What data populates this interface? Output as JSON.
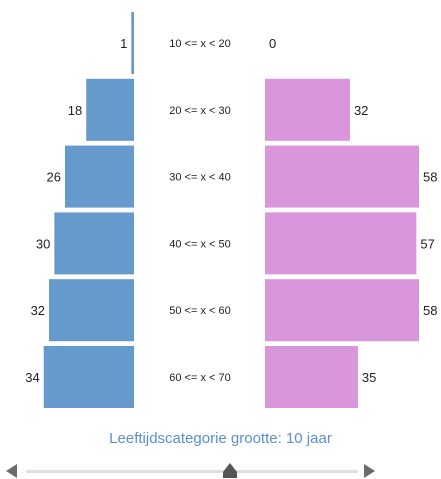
{
  "chart_data": {
    "type": "bar",
    "orientation": "horizontal-pyramid",
    "categories": [
      "10 <= x < 20",
      "20 <= x < 30",
      "30 <= x < 40",
      "40 <= x < 50",
      "50 <= x < 60",
      "60 <= x < 70"
    ],
    "series": [
      {
        "values": [
          1,
          18,
          26,
          30,
          32,
          34
        ],
        "color": "#6699cc"
      },
      {
        "values": [
          0,
          32,
          58,
          57,
          58,
          35
        ],
        "color": "#d996dd"
      }
    ],
    "xlim": [
      0,
      58
    ]
  },
  "caption": "Leeftijdscategorie grootte: 10 jaar",
  "slider": {
    "level": 0.615,
    "left_icon": "triangle-left-icon",
    "right_icon": "triangle-right-icon"
  },
  "colors": {
    "left": "#6699cc",
    "right": "#d996dd",
    "caption": "#5b8fd0"
  }
}
